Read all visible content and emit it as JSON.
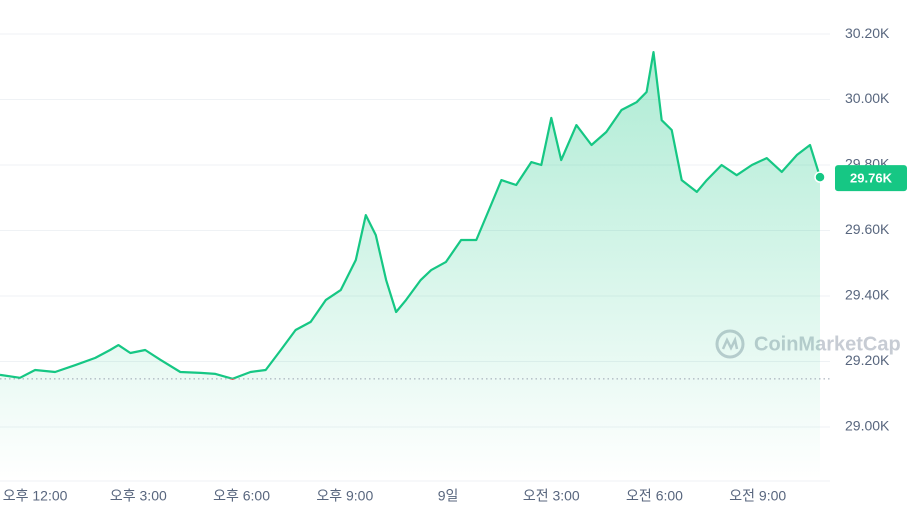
{
  "chart_data": {
    "type": "line",
    "watermark": "CoinMarketCap",
    "series": [
      {
        "color": "#16c784",
        "x": [
          10.98,
          11.56,
          12,
          12.58,
          13.17,
          13.75,
          14.18,
          14.42,
          14.77,
          15.2,
          15.64,
          16.22,
          16.81,
          17.24,
          17.74,
          18.26,
          18.7,
          19.14,
          19.57,
          20.01,
          20.45,
          20.88,
          21.32,
          21.61,
          21.9,
          22.2,
          22.49,
          22.78,
          23.21,
          23.51,
          23.94,
          24.38,
          24.82,
          25.25,
          25.55,
          25.98,
          26.42,
          26.71,
          27.0,
          27.29,
          27.73,
          28.17,
          28.6,
          29.04,
          29.48,
          29.77,
          29.97,
          30.21,
          30.5,
          30.79,
          31.23,
          31.52,
          31.95,
          32.39,
          32.83,
          33.26,
          33.7,
          34.14,
          34.52,
          34.81
        ],
        "values": [
          29159,
          29150,
          29174,
          29168,
          29189,
          29211,
          29235,
          29250,
          29226,
          29235,
          29205,
          29168,
          29165,
          29162,
          29147,
          29168,
          29174,
          29235,
          29296,
          29321,
          29388,
          29418,
          29510,
          29647,
          29586,
          29449,
          29351,
          29388,
          29449,
          29479,
          29504,
          29571,
          29571,
          29678,
          29754,
          29739,
          29809,
          29800,
          29944,
          29815,
          29922,
          29861,
          29901,
          29968,
          29992,
          30023,
          30145,
          29937,
          29907,
          29754,
          29718,
          29754,
          29800,
          29769,
          29800,
          29821,
          29779,
          29831,
          29861,
          29763
        ]
      }
    ],
    "down_color": "#ea3943",
    "reference_line": 29147,
    "current_price": {
      "value": 29760,
      "label": "29.76K"
    },
    "xlim": [
      10.98,
      35.1
    ],
    "xticks": [
      {
        "value": 12,
        "label": "오후 12:00"
      },
      {
        "value": 15,
        "label": "오후 3:00"
      },
      {
        "value": 18,
        "label": "오후 6:00"
      },
      {
        "value": 21,
        "label": "오후 9:00"
      },
      {
        "value": 24,
        "label": "9일"
      },
      {
        "value": 27,
        "label": "오전 3:00"
      },
      {
        "value": 30,
        "label": "오전 6:00"
      },
      {
        "value": 33,
        "label": "오전 9:00"
      }
    ],
    "ylim": [
      28838,
      30304
    ],
    "yticks": [
      {
        "value": 29000,
        "label": "29.00K"
      },
      {
        "value": 29200,
        "label": "29.20K"
      },
      {
        "value": 29400,
        "label": "29.40K"
      },
      {
        "value": 29600,
        "label": "29.60K"
      },
      {
        "value": 29800,
        "label": "29.80K"
      },
      {
        "value": 30000,
        "label": "30.00K"
      },
      {
        "value": 30200,
        "label": "30.20K"
      }
    ],
    "grid": true
  }
}
